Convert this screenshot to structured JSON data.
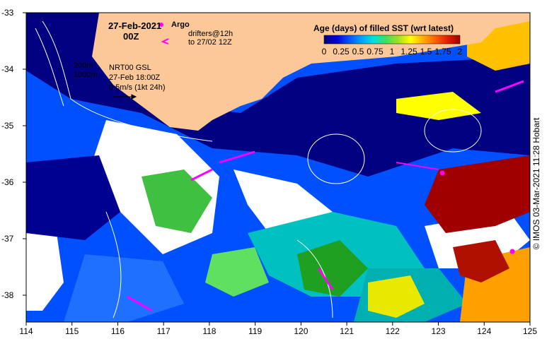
{
  "date": "27-Feb-2021",
  "hour": "00Z",
  "argo_label": "Argo",
  "drifters_line1": "drifters@12h",
  "drifters_line2": "to 27/02 12Z",
  "depth_200": "200m",
  "depth_1000": "1000m",
  "product": "NRT00 GSL",
  "product_time": "27-Feb 18:00Z",
  "vector_scale": "0.5m/s (1kt 24h)",
  "colorbar": {
    "title": "Age (days) of filled SST (wrt latest)",
    "labels": [
      "0",
      "0.25",
      "0.5",
      "0.75",
      "1",
      "1.25",
      "1.5",
      "1.75",
      "2"
    ],
    "colors": [
      "#000080",
      "#0000d0",
      "#0050ff",
      "#00a0ff",
      "#00e0e0",
      "#40e060",
      "#a0e020",
      "#ffff00",
      "#ffb000",
      "#ff6000",
      "#e02000",
      "#a00000"
    ]
  },
  "x_ticks": [
    "114",
    "115",
    "116",
    "117",
    "118",
    "119",
    "120",
    "121",
    "122",
    "123",
    "124",
    "125"
  ],
  "y_ticks": [
    "-33",
    "-34",
    "-35",
    "-36",
    "-37",
    "-38"
  ],
  "credit": "© IMOS 03-Mar-2021 11:28 Hobart",
  "colors": {
    "land": "#fcc897",
    "argo": "#ff00ff",
    "drifter": "#ff00ff",
    "frame": "#000000"
  }
}
